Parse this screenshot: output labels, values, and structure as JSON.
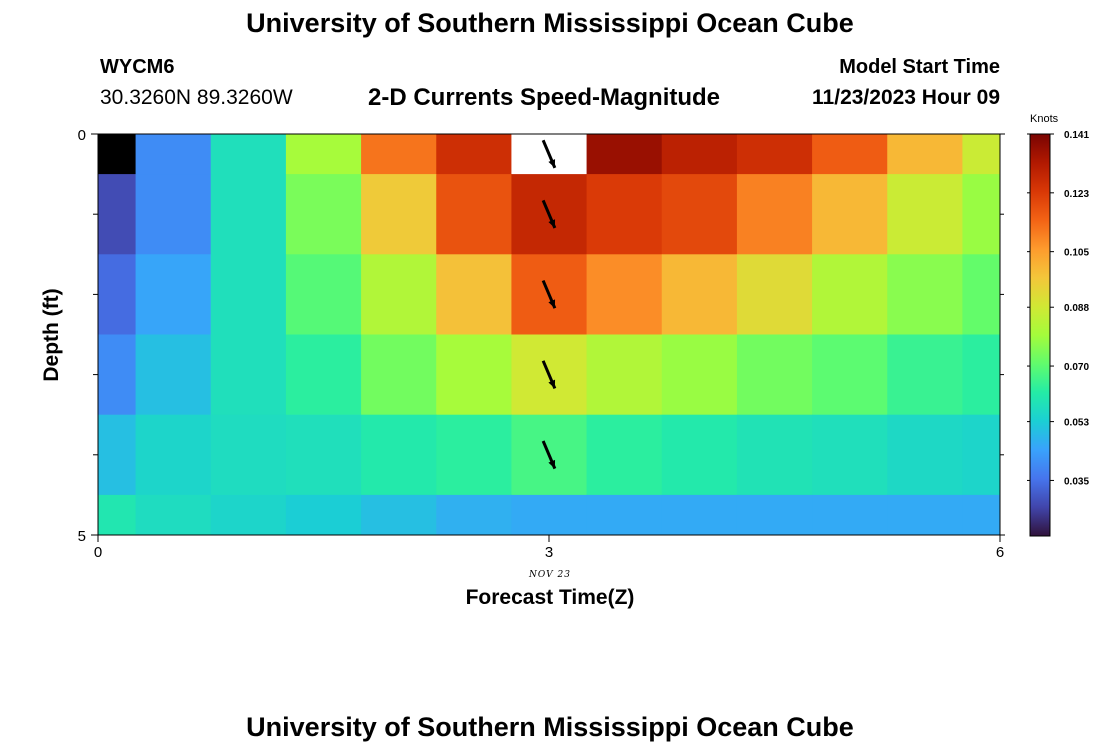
{
  "header": {
    "title": "University of Southern Mississippi Ocean Cube",
    "station_id": "WYCM6",
    "coordinates": "30.3260N  89.3260W",
    "subtitle": "2-D Currents Speed-Magnitude",
    "model_start_label": "Model Start Time",
    "model_start_value": "11/23/2023 Hour 09"
  },
  "footer": {
    "title": "University of Southern Mississippi Ocean Cube"
  },
  "colorbar": {
    "units": "Knots",
    "ticks": [
      "0.141",
      "0.123",
      "0.105",
      "0.088",
      "0.070",
      "0.053",
      "0.035"
    ],
    "tick_values": [
      0.141,
      0.123,
      0.105,
      0.088,
      0.07,
      0.053,
      0.035
    ],
    "min": 0.018,
    "max": 0.141,
    "colors": [
      "#30123b",
      "#4145ab",
      "#4675ed",
      "#39a2fc",
      "#1bcfd4",
      "#24eca6",
      "#61fc6c",
      "#a4fc3b",
      "#d1e834",
      "#f3c63a",
      "#fe9b2d",
      "#f36315",
      "#d93806",
      "#b11901",
      "#7a0402"
    ]
  },
  "chart_data": {
    "type": "heatmap",
    "title": "2-D Currents Speed-Magnitude",
    "xlabel": "Forecast Time(Z)",
    "ylabel": "Depth (ft)",
    "x_date_label": "NOV 23",
    "xlim": [
      0,
      6
    ],
    "ylim": [
      0,
      5
    ],
    "x_ticks": [
      "0",
      "3",
      "6"
    ],
    "x_tick_values": [
      0,
      3,
      6
    ],
    "y_ticks": [
      "0",
      "5"
    ],
    "y_tick_values": [
      0,
      5
    ],
    "y_minor_ticks": [
      1,
      2,
      3,
      4
    ],
    "column_centers_hours": [
      0,
      0.5,
      1,
      1.5,
      2,
      2.5,
      3,
      3.5,
      4,
      4.5,
      5,
      5.5,
      6
    ],
    "row_centers_ft": [
      0.25,
      1,
      2,
      3,
      4,
      4.75
    ],
    "row_edges_ft": [
      0,
      0.5,
      1.5,
      2.5,
      3.5,
      4.5,
      5
    ],
    "values_knots": [
      [
        0.018,
        0.04,
        0.058,
        0.08,
        0.112,
        0.126,
        null,
        0.136,
        0.13,
        0.126,
        0.116,
        0.1,
        0.087
      ],
      [
        0.028,
        0.04,
        0.058,
        0.074,
        0.096,
        0.118,
        0.128,
        0.123,
        0.12,
        0.11,
        0.1,
        0.087,
        0.078
      ],
      [
        0.034,
        0.045,
        0.058,
        0.069,
        0.082,
        0.098,
        0.116,
        0.108,
        0.1,
        0.092,
        0.082,
        0.076,
        0.071
      ],
      [
        0.04,
        0.05,
        0.058,
        0.063,
        0.073,
        0.08,
        0.088,
        0.082,
        0.078,
        0.073,
        0.07,
        0.065,
        0.063
      ],
      [
        0.05,
        0.055,
        0.057,
        0.058,
        0.061,
        0.063,
        0.067,
        0.063,
        0.061,
        0.059,
        0.058,
        0.056,
        0.055
      ],
      [
        0.06,
        0.057,
        0.055,
        0.053,
        0.05,
        0.047,
        0.046,
        0.046,
        0.046,
        0.046,
        0.046,
        0.046,
        0.046
      ]
    ],
    "vectors": [
      {
        "x": 3,
        "depth": 0.25,
        "direction": "SSE"
      },
      {
        "x": 3,
        "depth": 1,
        "direction": "SSE"
      },
      {
        "x": 3,
        "depth": 2,
        "direction": "SSE"
      },
      {
        "x": 3,
        "depth": 3,
        "direction": "SSE"
      },
      {
        "x": 3,
        "depth": 4,
        "direction": "SSE"
      }
    ]
  }
}
